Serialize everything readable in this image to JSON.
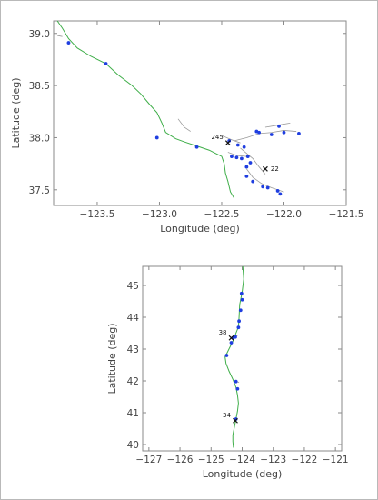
{
  "chart_data": [
    {
      "type": "scatter",
      "title": "",
      "xlabel": "Longitude (deg)",
      "ylabel": "Latitude (deg)",
      "xlim": [
        -123.85,
        -121.5
      ],
      "ylim": [
        37.35,
        39.12
      ],
      "xticks": [
        -123.5,
        -123.0,
        -122.5,
        -122.0,
        -121.5
      ],
      "xtick_labels": [
        "−123.5",
        "−123.0",
        "−122.5",
        "−122.0",
        "−121.5"
      ],
      "yticks": [
        37.5,
        38.0,
        38.5,
        39.0
      ],
      "ytick_labels": [
        "37.5",
        "38.0",
        "38.5",
        "39.0"
      ],
      "grid": false,
      "river_color": "#3fae49",
      "station_color": "#1f3ee0",
      "river": [
        [
          -123.82,
          39.12
        ],
        [
          -123.78,
          39.05
        ],
        [
          -123.73,
          38.95
        ],
        [
          -123.66,
          38.86
        ],
        [
          -123.55,
          38.78
        ],
        [
          -123.43,
          38.71
        ],
        [
          -123.33,
          38.6
        ],
        [
          -123.22,
          38.5
        ],
        [
          -123.15,
          38.42
        ],
        [
          -123.08,
          38.32
        ],
        [
          -123.02,
          38.24
        ],
        [
          -122.98,
          38.14
        ],
        [
          -122.95,
          38.05
        ],
        [
          -122.87,
          37.99
        ],
        [
          -122.8,
          37.96
        ],
        [
          -122.7,
          37.92
        ],
        [
          -122.6,
          37.88
        ],
        [
          -122.55,
          37.85
        ],
        [
          -122.5,
          37.82
        ],
        [
          -122.48,
          37.75
        ],
        [
          -122.47,
          37.66
        ],
        [
          -122.45,
          37.58
        ],
        [
          -122.43,
          37.48
        ],
        [
          -122.4,
          37.42
        ]
      ],
      "stations": [
        [
          -123.73,
          38.91
        ],
        [
          -123.43,
          38.71
        ],
        [
          -123.02,
          38.0
        ],
        [
          -122.7,
          37.91
        ],
        [
          -122.44,
          37.97
        ],
        [
          -122.37,
          37.93
        ],
        [
          -122.32,
          37.91
        ],
        [
          -122.22,
          38.06
        ],
        [
          -122.2,
          38.05
        ],
        [
          -122.1,
          38.03
        ],
        [
          -122.04,
          38.11
        ],
        [
          -122.0,
          38.05
        ],
        [
          -121.88,
          38.04
        ],
        [
          -122.42,
          37.82
        ],
        [
          -122.38,
          37.81
        ],
        [
          -122.34,
          37.8
        ],
        [
          -122.29,
          37.82
        ],
        [
          -122.27,
          37.76
        ],
        [
          -122.3,
          37.72
        ],
        [
          -122.3,
          37.63
        ],
        [
          -122.25,
          37.58
        ],
        [
          -122.17,
          37.53
        ],
        [
          -122.13,
          37.52
        ],
        [
          -122.05,
          37.49
        ],
        [
          -122.03,
          37.46
        ]
      ],
      "marked_stations": [
        {
          "label": "245",
          "lon": -122.45,
          "lat": 37.95
        },
        {
          "label": "22",
          "lon": -122.15,
          "lat": 37.7
        }
      ]
    },
    {
      "type": "scatter",
      "title": "",
      "xlabel": "Longitude (deg)",
      "ylabel": "Latitude (deg)",
      "xlim": [
        -127.2,
        -120.8
      ],
      "ylim": [
        39.8,
        45.6
      ],
      "xticks": [
        -127,
        -126,
        -125,
        -124,
        -123,
        -122,
        -121
      ],
      "xtick_labels": [
        "−127",
        "−126",
        "−125",
        "−124",
        "−123",
        "−122",
        "−121"
      ],
      "yticks": [
        40,
        41,
        42,
        43,
        44,
        45
      ],
      "ytick_labels": [
        "40",
        "41",
        "42",
        "43",
        "44",
        "45"
      ],
      "grid": false,
      "river_color": "#3fae49",
      "station_color": "#1f3ee0",
      "river": [
        [
          -123.98,
          45.6
        ],
        [
          -123.95,
          45.2
        ],
        [
          -124.0,
          44.8
        ],
        [
          -124.08,
          44.4
        ],
        [
          -124.1,
          44.0
        ],
        [
          -124.12,
          43.7
        ],
        [
          -124.2,
          43.5
        ],
        [
          -124.25,
          43.35
        ],
        [
          -124.35,
          43.15
        ],
        [
          -124.45,
          42.95
        ],
        [
          -124.55,
          42.75
        ],
        [
          -124.52,
          42.55
        ],
        [
          -124.42,
          42.3
        ],
        [
          -124.3,
          42.05
        ],
        [
          -124.2,
          41.8
        ],
        [
          -124.15,
          41.55
        ],
        [
          -124.12,
          41.3
        ],
        [
          -124.15,
          41.05
        ],
        [
          -124.2,
          40.8
        ],
        [
          -124.25,
          40.55
        ],
        [
          -124.3,
          40.3
        ],
        [
          -124.3,
          40.1
        ],
        [
          -124.28,
          39.9
        ]
      ],
      "stations": [
        [
          -124.02,
          44.75
        ],
        [
          -124.0,
          44.55
        ],
        [
          -124.05,
          44.22
        ],
        [
          -124.1,
          43.88
        ],
        [
          -124.12,
          43.68
        ],
        [
          -124.22,
          43.38
        ],
        [
          -124.3,
          43.35
        ],
        [
          -124.35,
          43.2
        ],
        [
          -124.5,
          42.8
        ],
        [
          -124.2,
          41.98
        ],
        [
          -124.15,
          41.75
        ],
        [
          -124.2,
          40.8
        ]
      ],
      "marked_stations": [
        {
          "label": "38",
          "lon": -124.35,
          "lat": 43.35
        },
        {
          "label": "34",
          "lon": -124.22,
          "lat": 40.75
        }
      ]
    }
  ]
}
